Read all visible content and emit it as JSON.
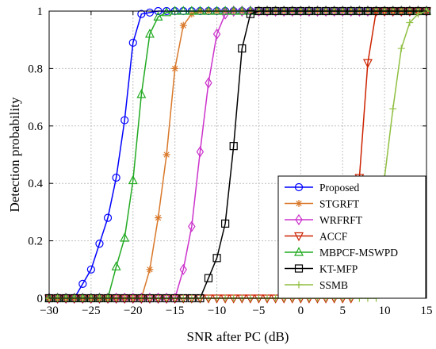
{
  "chart_data": {
    "type": "line",
    "xlabel": "SNR after PC (dB)",
    "ylabel": "Detection probability",
    "xlim": [
      -30,
      15
    ],
    "ylim": [
      0,
      1
    ],
    "xticks": [
      -30,
      -25,
      -20,
      -15,
      -10,
      -5,
      0,
      5,
      10,
      15
    ],
    "yticks": [
      0,
      0.2,
      0.4,
      0.6,
      0.8,
      1
    ],
    "grid": true,
    "legend_position": "bottom-right",
    "series": [
      {
        "name": "Proposed",
        "color": "#0000ff",
        "marker": "circle",
        "points": [
          [
            -30,
            0
          ],
          [
            -29,
            0
          ],
          [
            -28,
            0
          ],
          [
            -27,
            0
          ],
          [
            -26,
            0.05
          ],
          [
            -25,
            0.1
          ],
          [
            -24,
            0.19
          ],
          [
            -23,
            0.28
          ],
          [
            -22,
            0.42
          ],
          [
            -21,
            0.62
          ],
          [
            -20,
            0.89
          ],
          [
            -19,
            0.99
          ],
          [
            -18,
            0.995
          ],
          [
            -17,
            1
          ],
          [
            -16,
            1
          ],
          [
            -15,
            1
          ],
          [
            -14,
            1
          ],
          [
            -13,
            1
          ],
          [
            -12,
            1
          ],
          [
            -11,
            1
          ],
          [
            -10,
            1
          ],
          [
            -9,
            1
          ],
          [
            -8,
            1
          ],
          [
            -7,
            1
          ],
          [
            -6,
            1
          ],
          [
            -5,
            1
          ],
          [
            -4,
            1
          ],
          [
            -3,
            1
          ],
          [
            -2,
            1
          ],
          [
            -1,
            1
          ],
          [
            0,
            1
          ],
          [
            1,
            1
          ],
          [
            2,
            1
          ],
          [
            3,
            1
          ],
          [
            4,
            1
          ],
          [
            5,
            1
          ],
          [
            6,
            1
          ],
          [
            7,
            1
          ],
          [
            8,
            1
          ],
          [
            9,
            1
          ],
          [
            10,
            1
          ],
          [
            11,
            1
          ],
          [
            12,
            1
          ],
          [
            13,
            1
          ],
          [
            14,
            1
          ],
          [
            15,
            1
          ]
        ]
      },
      {
        "name": "STGRFT",
        "color": "#d9782a",
        "marker": "asterisk",
        "points": [
          [
            -30,
            0
          ],
          [
            -29,
            0
          ],
          [
            -28,
            0
          ],
          [
            -27,
            0
          ],
          [
            -26,
            0
          ],
          [
            -25,
            0
          ],
          [
            -24,
            0
          ],
          [
            -23,
            0
          ],
          [
            -22,
            0
          ],
          [
            -21,
            0
          ],
          [
            -20,
            0
          ],
          [
            -19,
            0
          ],
          [
            -18,
            0.1
          ],
          [
            -17,
            0.28
          ],
          [
            -16,
            0.5
          ],
          [
            -15,
            0.8
          ],
          [
            -14,
            0.95
          ],
          [
            -13,
            0.99
          ],
          [
            -12,
            1
          ],
          [
            -11,
            1
          ],
          [
            -10,
            1
          ],
          [
            -9,
            1
          ],
          [
            -8,
            1
          ],
          [
            -7,
            1
          ],
          [
            -6,
            1
          ],
          [
            -5,
            1
          ],
          [
            -4,
            1
          ],
          [
            -3,
            1
          ],
          [
            -2,
            1
          ],
          [
            -1,
            1
          ],
          [
            0,
            1
          ],
          [
            1,
            1
          ],
          [
            2,
            1
          ],
          [
            3,
            1
          ],
          [
            4,
            1
          ],
          [
            5,
            1
          ],
          [
            6,
            1
          ],
          [
            7,
            1
          ],
          [
            8,
            1
          ],
          [
            9,
            1
          ],
          [
            10,
            1
          ],
          [
            11,
            1
          ],
          [
            12,
            1
          ],
          [
            13,
            1
          ],
          [
            14,
            1
          ],
          [
            15,
            1
          ]
        ]
      },
      {
        "name": "WRFRFT",
        "color": "#cc33cc",
        "marker": "diamond",
        "points": [
          [
            -30,
            0
          ],
          [
            -29,
            0
          ],
          [
            -28,
            0
          ],
          [
            -27,
            0
          ],
          [
            -26,
            0
          ],
          [
            -25,
            0
          ],
          [
            -24,
            0
          ],
          [
            -23,
            0
          ],
          [
            -22,
            0
          ],
          [
            -21,
            0
          ],
          [
            -20,
            0
          ],
          [
            -19,
            0
          ],
          [
            -18,
            0
          ],
          [
            -17,
            0
          ],
          [
            -16,
            0
          ],
          [
            -15,
            0
          ],
          [
            -14,
            0.1
          ],
          [
            -13,
            0.25
          ],
          [
            -12,
            0.51
          ],
          [
            -11,
            0.75
          ],
          [
            -10,
            0.92
          ],
          [
            -9,
            0.99
          ],
          [
            -8,
            1
          ],
          [
            -7,
            1
          ],
          [
            -6,
            1
          ],
          [
            -5,
            1
          ],
          [
            -4,
            1
          ],
          [
            -3,
            1
          ],
          [
            -2,
            1
          ],
          [
            -1,
            1
          ],
          [
            0,
            1
          ],
          [
            1,
            1
          ],
          [
            2,
            1
          ],
          [
            3,
            1
          ],
          [
            4,
            1
          ],
          [
            5,
            1
          ],
          [
            6,
            1
          ],
          [
            7,
            1
          ],
          [
            8,
            1
          ],
          [
            9,
            1
          ],
          [
            10,
            1
          ],
          [
            11,
            1
          ],
          [
            12,
            1
          ],
          [
            13,
            1
          ],
          [
            14,
            1
          ],
          [
            15,
            1
          ]
        ]
      },
      {
        "name": "ACCF",
        "color": "#cc2200",
        "marker": "triangle-down",
        "points": [
          [
            -30,
            0
          ],
          [
            -29,
            0
          ],
          [
            -28,
            0
          ],
          [
            -27,
            0
          ],
          [
            -26,
            0
          ],
          [
            -25,
            0
          ],
          [
            -24,
            0
          ],
          [
            -23,
            0
          ],
          [
            -22,
            0
          ],
          [
            -21,
            0
          ],
          [
            -20,
            0
          ],
          [
            -19,
            0
          ],
          [
            -18,
            0
          ],
          [
            -17,
            0
          ],
          [
            -16,
            0
          ],
          [
            -15,
            0
          ],
          [
            -14,
            0
          ],
          [
            -13,
            0
          ],
          [
            -12,
            0
          ],
          [
            -11,
            0
          ],
          [
            -10,
            0
          ],
          [
            -9,
            0
          ],
          [
            -8,
            0
          ],
          [
            -7,
            0
          ],
          [
            -6,
            0
          ],
          [
            -5,
            0
          ],
          [
            -4,
            0
          ],
          [
            -3,
            0
          ],
          [
            -2,
            0
          ],
          [
            -1,
            0
          ],
          [
            0,
            0
          ],
          [
            1,
            0
          ],
          [
            2,
            0
          ],
          [
            3,
            0
          ],
          [
            4,
            0
          ],
          [
            5,
            0
          ],
          [
            6,
            0
          ],
          [
            7,
            0.42
          ],
          [
            8,
            0.82
          ],
          [
            9,
            1
          ],
          [
            10,
            1
          ],
          [
            11,
            1
          ],
          [
            12,
            1
          ],
          [
            13,
            1
          ],
          [
            14,
            1
          ],
          [
            15,
            1
          ]
        ]
      },
      {
        "name": "MBPCF-MSWPD",
        "color": "#22aa22",
        "marker": "triangle-up",
        "points": [
          [
            -30,
            0
          ],
          [
            -29,
            0
          ],
          [
            -28,
            0
          ],
          [
            -27,
            0
          ],
          [
            -26,
            0
          ],
          [
            -25,
            0
          ],
          [
            -24,
            0
          ],
          [
            -23,
            0
          ],
          [
            -22,
            0.11
          ],
          [
            -21,
            0.21
          ],
          [
            -20,
            0.41
          ],
          [
            -19,
            0.71
          ],
          [
            -18,
            0.92
          ],
          [
            -17,
            0.98
          ],
          [
            -16,
            0.995
          ],
          [
            -15,
            1
          ],
          [
            -14,
            1
          ],
          [
            -13,
            1
          ],
          [
            -12,
            1
          ],
          [
            -11,
            1
          ],
          [
            -10,
            1
          ],
          [
            -9,
            1
          ],
          [
            -8,
            1
          ],
          [
            -7,
            1
          ],
          [
            -6,
            1
          ],
          [
            -5,
            1
          ],
          [
            -4,
            1
          ],
          [
            -3,
            1
          ],
          [
            -2,
            1
          ],
          [
            -1,
            1
          ],
          [
            0,
            1
          ],
          [
            1,
            1
          ],
          [
            2,
            1
          ],
          [
            3,
            1
          ],
          [
            4,
            1
          ],
          [
            5,
            1
          ],
          [
            6,
            1
          ],
          [
            7,
            1
          ],
          [
            8,
            1
          ],
          [
            9,
            1
          ],
          [
            10,
            1
          ],
          [
            11,
            1
          ],
          [
            12,
            1
          ],
          [
            13,
            1
          ],
          [
            14,
            1
          ],
          [
            15,
            1
          ]
        ]
      },
      {
        "name": "KT-MFP",
        "color": "#000000",
        "marker": "square",
        "points": [
          [
            -30,
            0
          ],
          [
            -29,
            0
          ],
          [
            -28,
            0
          ],
          [
            -27,
            0
          ],
          [
            -26,
            0
          ],
          [
            -25,
            0
          ],
          [
            -24,
            0
          ],
          [
            -23,
            0
          ],
          [
            -22,
            0
          ],
          [
            -21,
            0
          ],
          [
            -20,
            0
          ],
          [
            -19,
            0
          ],
          [
            -18,
            0
          ],
          [
            -17,
            0
          ],
          [
            -16,
            0
          ],
          [
            -15,
            0
          ],
          [
            -14,
            0
          ],
          [
            -13,
            0
          ],
          [
            -12,
            0
          ],
          [
            -11,
            0.07
          ],
          [
            -10,
            0.14
          ],
          [
            -9,
            0.26
          ],
          [
            -8,
            0.53
          ],
          [
            -7,
            0.87
          ],
          [
            -6,
            0.99
          ],
          [
            -5,
            1
          ],
          [
            -4,
            1
          ],
          [
            -3,
            1
          ],
          [
            -2,
            1
          ],
          [
            -1,
            1
          ],
          [
            0,
            1
          ],
          [
            1,
            1
          ],
          [
            2,
            1
          ],
          [
            3,
            1
          ],
          [
            4,
            1
          ],
          [
            5,
            1
          ],
          [
            6,
            1
          ],
          [
            7,
            1
          ],
          [
            8,
            1
          ],
          [
            9,
            1
          ],
          [
            10,
            1
          ],
          [
            11,
            1
          ],
          [
            12,
            1
          ],
          [
            13,
            1
          ],
          [
            14,
            1
          ],
          [
            15,
            1
          ]
        ]
      },
      {
        "name": "SSMB",
        "color": "#8fbf40",
        "marker": "plus",
        "points": [
          [
            -30,
            0
          ],
          [
            -29,
            0
          ],
          [
            -28,
            0
          ],
          [
            -27,
            0
          ],
          [
            -26,
            0
          ],
          [
            -25,
            0
          ],
          [
            -24,
            0
          ],
          [
            -23,
            0
          ],
          [
            -22,
            0
          ],
          [
            -21,
            0
          ],
          [
            -20,
            0
          ],
          [
            -19,
            0
          ],
          [
            -18,
            0
          ],
          [
            -17,
            0
          ],
          [
            -16,
            0
          ],
          [
            -15,
            0
          ],
          [
            -14,
            0
          ],
          [
            -13,
            0
          ],
          [
            -12,
            0
          ],
          [
            -11,
            0
          ],
          [
            -10,
            0
          ],
          [
            -9,
            0
          ],
          [
            -8,
            0
          ],
          [
            -7,
            0
          ],
          [
            -6,
            0
          ],
          [
            -5,
            0
          ],
          [
            -4,
            0
          ],
          [
            -3,
            0
          ],
          [
            -2,
            0
          ],
          [
            -1,
            0
          ],
          [
            0,
            0
          ],
          [
            1,
            0
          ],
          [
            2,
            0
          ],
          [
            3,
            0
          ],
          [
            4,
            0
          ],
          [
            5,
            0
          ],
          [
            6,
            0
          ],
          [
            7,
            0
          ],
          [
            8,
            0
          ],
          [
            9,
            0
          ],
          [
            10,
            0.42
          ],
          [
            11,
            0.66
          ],
          [
            12,
            0.87
          ],
          [
            13,
            0.96
          ],
          [
            14,
            0.99
          ],
          [
            15,
            1
          ]
        ]
      }
    ]
  }
}
